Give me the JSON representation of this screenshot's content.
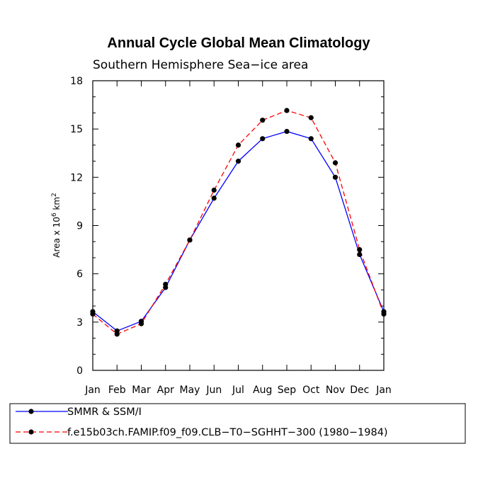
{
  "chart_data": {
    "type": "line",
    "title": "Annual Cycle Global Mean Climatology",
    "subtitle": "Southern Hemisphere Sea−ice area",
    "ylabel": "Area x 10",
    "ylabel_exp": "6",
    "ylabel_unit": " km",
    "ylabel_unit_exp": "2",
    "categories": [
      "Jan",
      "Feb",
      "Mar",
      "Apr",
      "May",
      "Jun",
      "Jul",
      "Aug",
      "Sep",
      "Oct",
      "Nov",
      "Dec",
      "Jan"
    ],
    "ylim": [
      0,
      18
    ],
    "yticks": [
      0,
      3,
      6,
      9,
      12,
      15,
      18
    ],
    "grid": false,
    "legend_position": "bottom",
    "series": [
      {
        "name": "SMMR & SSM/I",
        "color": "#0000ff",
        "dash": "solid",
        "values": [
          3.65,
          2.45,
          3.05,
          5.15,
          8.1,
          10.7,
          13.0,
          14.4,
          14.85,
          14.4,
          12.0,
          7.2,
          3.65
        ]
      },
      {
        "name": "f.e15b03ch.FAMIP.f09_f09.CLB−T0−SGHHT−300 (1980−1984)",
        "color": "#ff0000",
        "dash": "dashed",
        "values": [
          3.5,
          2.25,
          2.9,
          5.35,
          8.1,
          11.2,
          14.0,
          15.55,
          16.15,
          15.7,
          12.9,
          7.5,
          3.5
        ]
      }
    ]
  }
}
